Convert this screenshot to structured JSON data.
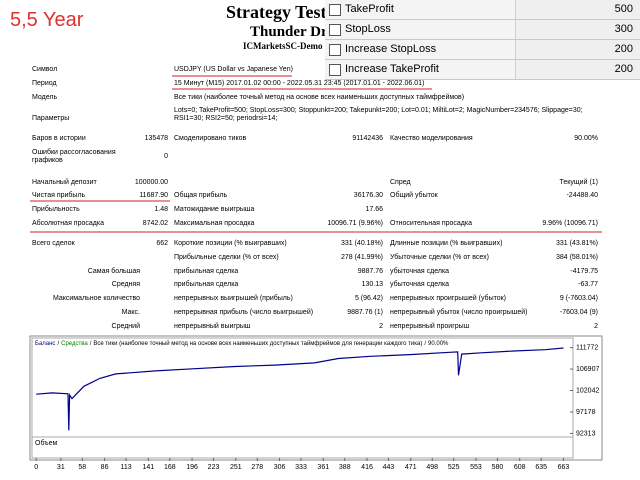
{
  "overlay_label": "5,5 Year",
  "header": {
    "title": "Strategy Test",
    "expert": "Thunder Dr",
    "server": "ICMarketsSC-Demo"
  },
  "params_panel": [
    {
      "name": "TakeProfit",
      "value": 500
    },
    {
      "name": "StopLoss",
      "value": 300
    },
    {
      "name": "Increase StopLoss",
      "value": 200
    },
    {
      "name": "Increase TakeProfit",
      "value": 200
    }
  ],
  "report": {
    "rows": [
      [
        "Символ",
        "USDJPY (US Dollar vs Japanese Yen)"
      ],
      [
        "Период",
        "15 Минут (M15) 2017.01.02 00:00 - 2022.05.31 23:45 (2017.01.01 - 2022.06.01)"
      ],
      [
        "Модель",
        "Все тики (наиболее точный метод на основе всех наименьших доступных таймфреймов)"
      ],
      [
        "Параметры",
        "Lots=0; TakeProfit=500; StopLoss=300; Stoppunkt=200; Takepunkt=200; Lot=0.01; MiltiLot=2; MagicNumber=234576; Slippage=30; RSI1=30; RSI2=50; periodrsi=14;"
      ],
      [
        "Баров в истории",
        "135478",
        "Смоделировано тиков",
        "91142436",
        "Качество моделирования",
        "90.00%"
      ],
      [
        "Ошибки рассогласования графиков",
        "0"
      ],
      [
        "Начальный депозит",
        "100000.00",
        "Спред",
        "Текущий (1)"
      ],
      [
        "Чистая прибыль",
        "11687.90",
        "Общая прибыль",
        "36176.30",
        "Общий убыток",
        "-24488.40"
      ],
      [
        "Прибыльность",
        "1.48",
        "Матожидание выигрыша",
        "17.66"
      ],
      [
        "Абсолютная просадка",
        "8742.02",
        "Максимальная просадка",
        "10096.71 (9.96%)",
        "Относительная просадка",
        "9.96% (10096.71)"
      ],
      [
        "Всего сделок",
        "662",
        "Короткие позиции (% выигравших)",
        "331 (40.18%)",
        "Длинные позиции (% выигравших)",
        "331 (43.81%)"
      ],
      [
        "Прибыльные сделки (% от всех)",
        "278 (41.99%)",
        "Убыточные сделки (% от всех)",
        "384 (58.01%)"
      ],
      [
        "Самая большая",
        "прибыльная сделка",
        "9887.76",
        "убыточная сделка",
        "-4179.75"
      ],
      [
        "Средняя",
        "прибыльная сделка",
        "130.13",
        "убыточная сделка",
        "-63.77"
      ],
      [
        "Максимальное количество",
        "непрерывных выигрышей (прибыль)",
        "5 (96.42)",
        "непрерывных проигрышей (убыток)",
        "9 (-7603.04)"
      ],
      [
        "Макс.",
        "непрерывная прибыль (число выигрышей)",
        "9887.76 (1)",
        "непрерывный убыток (число проигрышей)",
        "-7603.04 (9)"
      ],
      [
        "Средний",
        "непрерывный выигрыш",
        "2",
        "непрерывный проигрыш",
        "2"
      ]
    ]
  },
  "chart_data": {
    "type": "line",
    "legend_separator": "/",
    "legend_extra": [
      "Средства",
      "Все тики (наиболее точный метод на основе всех наименьших доступных таймфреймов для генерации каждого тика)",
      "90.00%"
    ],
    "legend_extra_colors": [
      "#008000",
      "#000000",
      "#000000"
    ],
    "volume_label": "Объем",
    "x": [
      0,
      20,
      40,
      41,
      42,
      45,
      60,
      80,
      100,
      150,
      200,
      250,
      300,
      350,
      380,
      420,
      470,
      520,
      530,
      531,
      535,
      560,
      600,
      640,
      663
    ],
    "series": [
      {
        "name": "Баланс",
        "color": "#00008b",
        "values": [
          101200,
          101500,
          101300,
          93000,
          101000,
          100200,
          103000,
          104800,
          105800,
          106500,
          107000,
          107500,
          107800,
          108300,
          109300,
          109800,
          110200,
          110700,
          110800,
          105500,
          110300,
          110600,
          111000,
          111300,
          111688
        ]
      }
    ],
    "xlim": [
      -4,
      675
    ],
    "xticks": [
      0,
      31,
      58,
      86,
      113,
      141,
      168,
      196,
      223,
      251,
      278,
      306,
      333,
      361,
      388,
      416,
      443,
      471,
      498,
      525,
      553,
      580,
      608,
      635,
      663
    ],
    "ylim": [
      91500,
      113500
    ],
    "yticks": [
      111772,
      106907,
      102042,
      97178,
      92313
    ]
  }
}
